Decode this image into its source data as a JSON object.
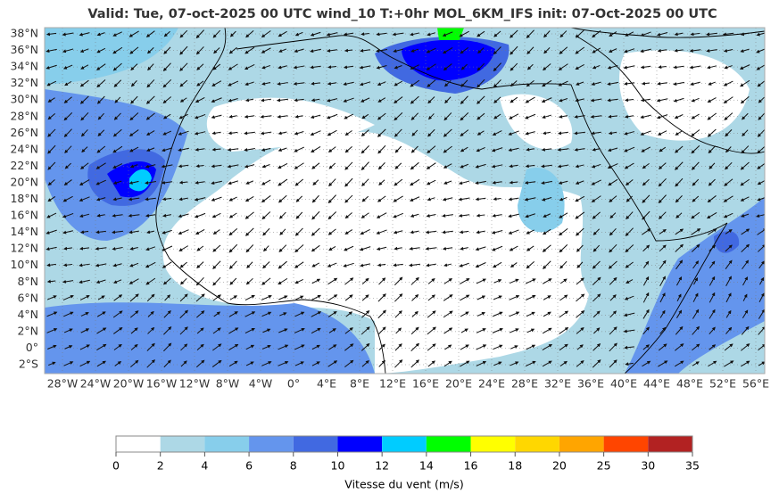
{
  "title": "Valid: Tue, 07-oct-2025   00 UTC   wind_10   T:+0hr   MOL_6KM_IFS   init: 07-Oct-2025    00 UTC",
  "map": {
    "lat_labels": [
      {
        "value": 38,
        "label": "38°N"
      },
      {
        "value": 36,
        "label": "36°N"
      },
      {
        "value": 34,
        "label": "34°N"
      },
      {
        "value": 32,
        "label": "32°N"
      },
      {
        "value": 30,
        "label": "30°N"
      },
      {
        "value": 28,
        "label": "28°N"
      },
      {
        "value": 26,
        "label": "26°N"
      },
      {
        "value": 24,
        "label": "24°N"
      },
      {
        "value": 22,
        "label": "22°N"
      },
      {
        "value": 20,
        "label": "20°N"
      },
      {
        "value": 18,
        "label": "18°N"
      },
      {
        "value": 16,
        "label": "16°N"
      },
      {
        "value": 14,
        "label": "14°N"
      },
      {
        "value": 12,
        "label": "12°N"
      },
      {
        "value": 10,
        "label": "10°N"
      },
      {
        "value": 8,
        "label": "8°N"
      },
      {
        "value": 6,
        "label": "6°N"
      },
      {
        "value": 4,
        "label": "4°N"
      },
      {
        "value": 2,
        "label": "2°N"
      },
      {
        "value": 0,
        "label": "0°"
      },
      {
        "value": -2,
        "label": "2°S"
      }
    ],
    "lon_labels": [
      {
        "value": -28,
        "label": "28°W"
      },
      {
        "value": -24,
        "label": "24°W"
      },
      {
        "value": -20,
        "label": "20°W"
      },
      {
        "value": -16,
        "label": "16°W"
      },
      {
        "value": -12,
        "label": "12°W"
      },
      {
        "value": -8,
        "label": "8°W"
      },
      {
        "value": -4,
        "label": "4°W"
      },
      {
        "value": 0,
        "label": "0°"
      },
      {
        "value": 4,
        "label": "4°E"
      },
      {
        "value": 8,
        "label": "8°E"
      },
      {
        "value": 12,
        "label": "12°E"
      },
      {
        "value": 16,
        "label": "16°E"
      },
      {
        "value": 20,
        "label": "20°E"
      },
      {
        "value": 24,
        "label": "24°E"
      },
      {
        "value": 28,
        "label": "28°E"
      },
      {
        "value": 32,
        "label": "32°E"
      },
      {
        "value": 36,
        "label": "36°E"
      },
      {
        "value": 40,
        "label": "40°E"
      },
      {
        "value": 44,
        "label": "44°E"
      },
      {
        "value": 48,
        "label": "48°E"
      },
      {
        "value": 52,
        "label": "52°E"
      },
      {
        "value": 56,
        "label": "56°E"
      }
    ]
  },
  "colorbar": {
    "levels": [
      0,
      2,
      4,
      6,
      8,
      10,
      12,
      14,
      16,
      18,
      20,
      25,
      30,
      35
    ],
    "colors": [
      "#ffffff",
      "#add8e6",
      "#87ceeb",
      "#6495ed",
      "#4169e1",
      "#0000ff",
      "#00ccff",
      "#00ff00",
      "#ffff00",
      "#ffd700",
      "#ffa500",
      "#ff4500",
      "#b22222"
    ],
    "label": "Vitesse du vent (m/s)"
  }
}
